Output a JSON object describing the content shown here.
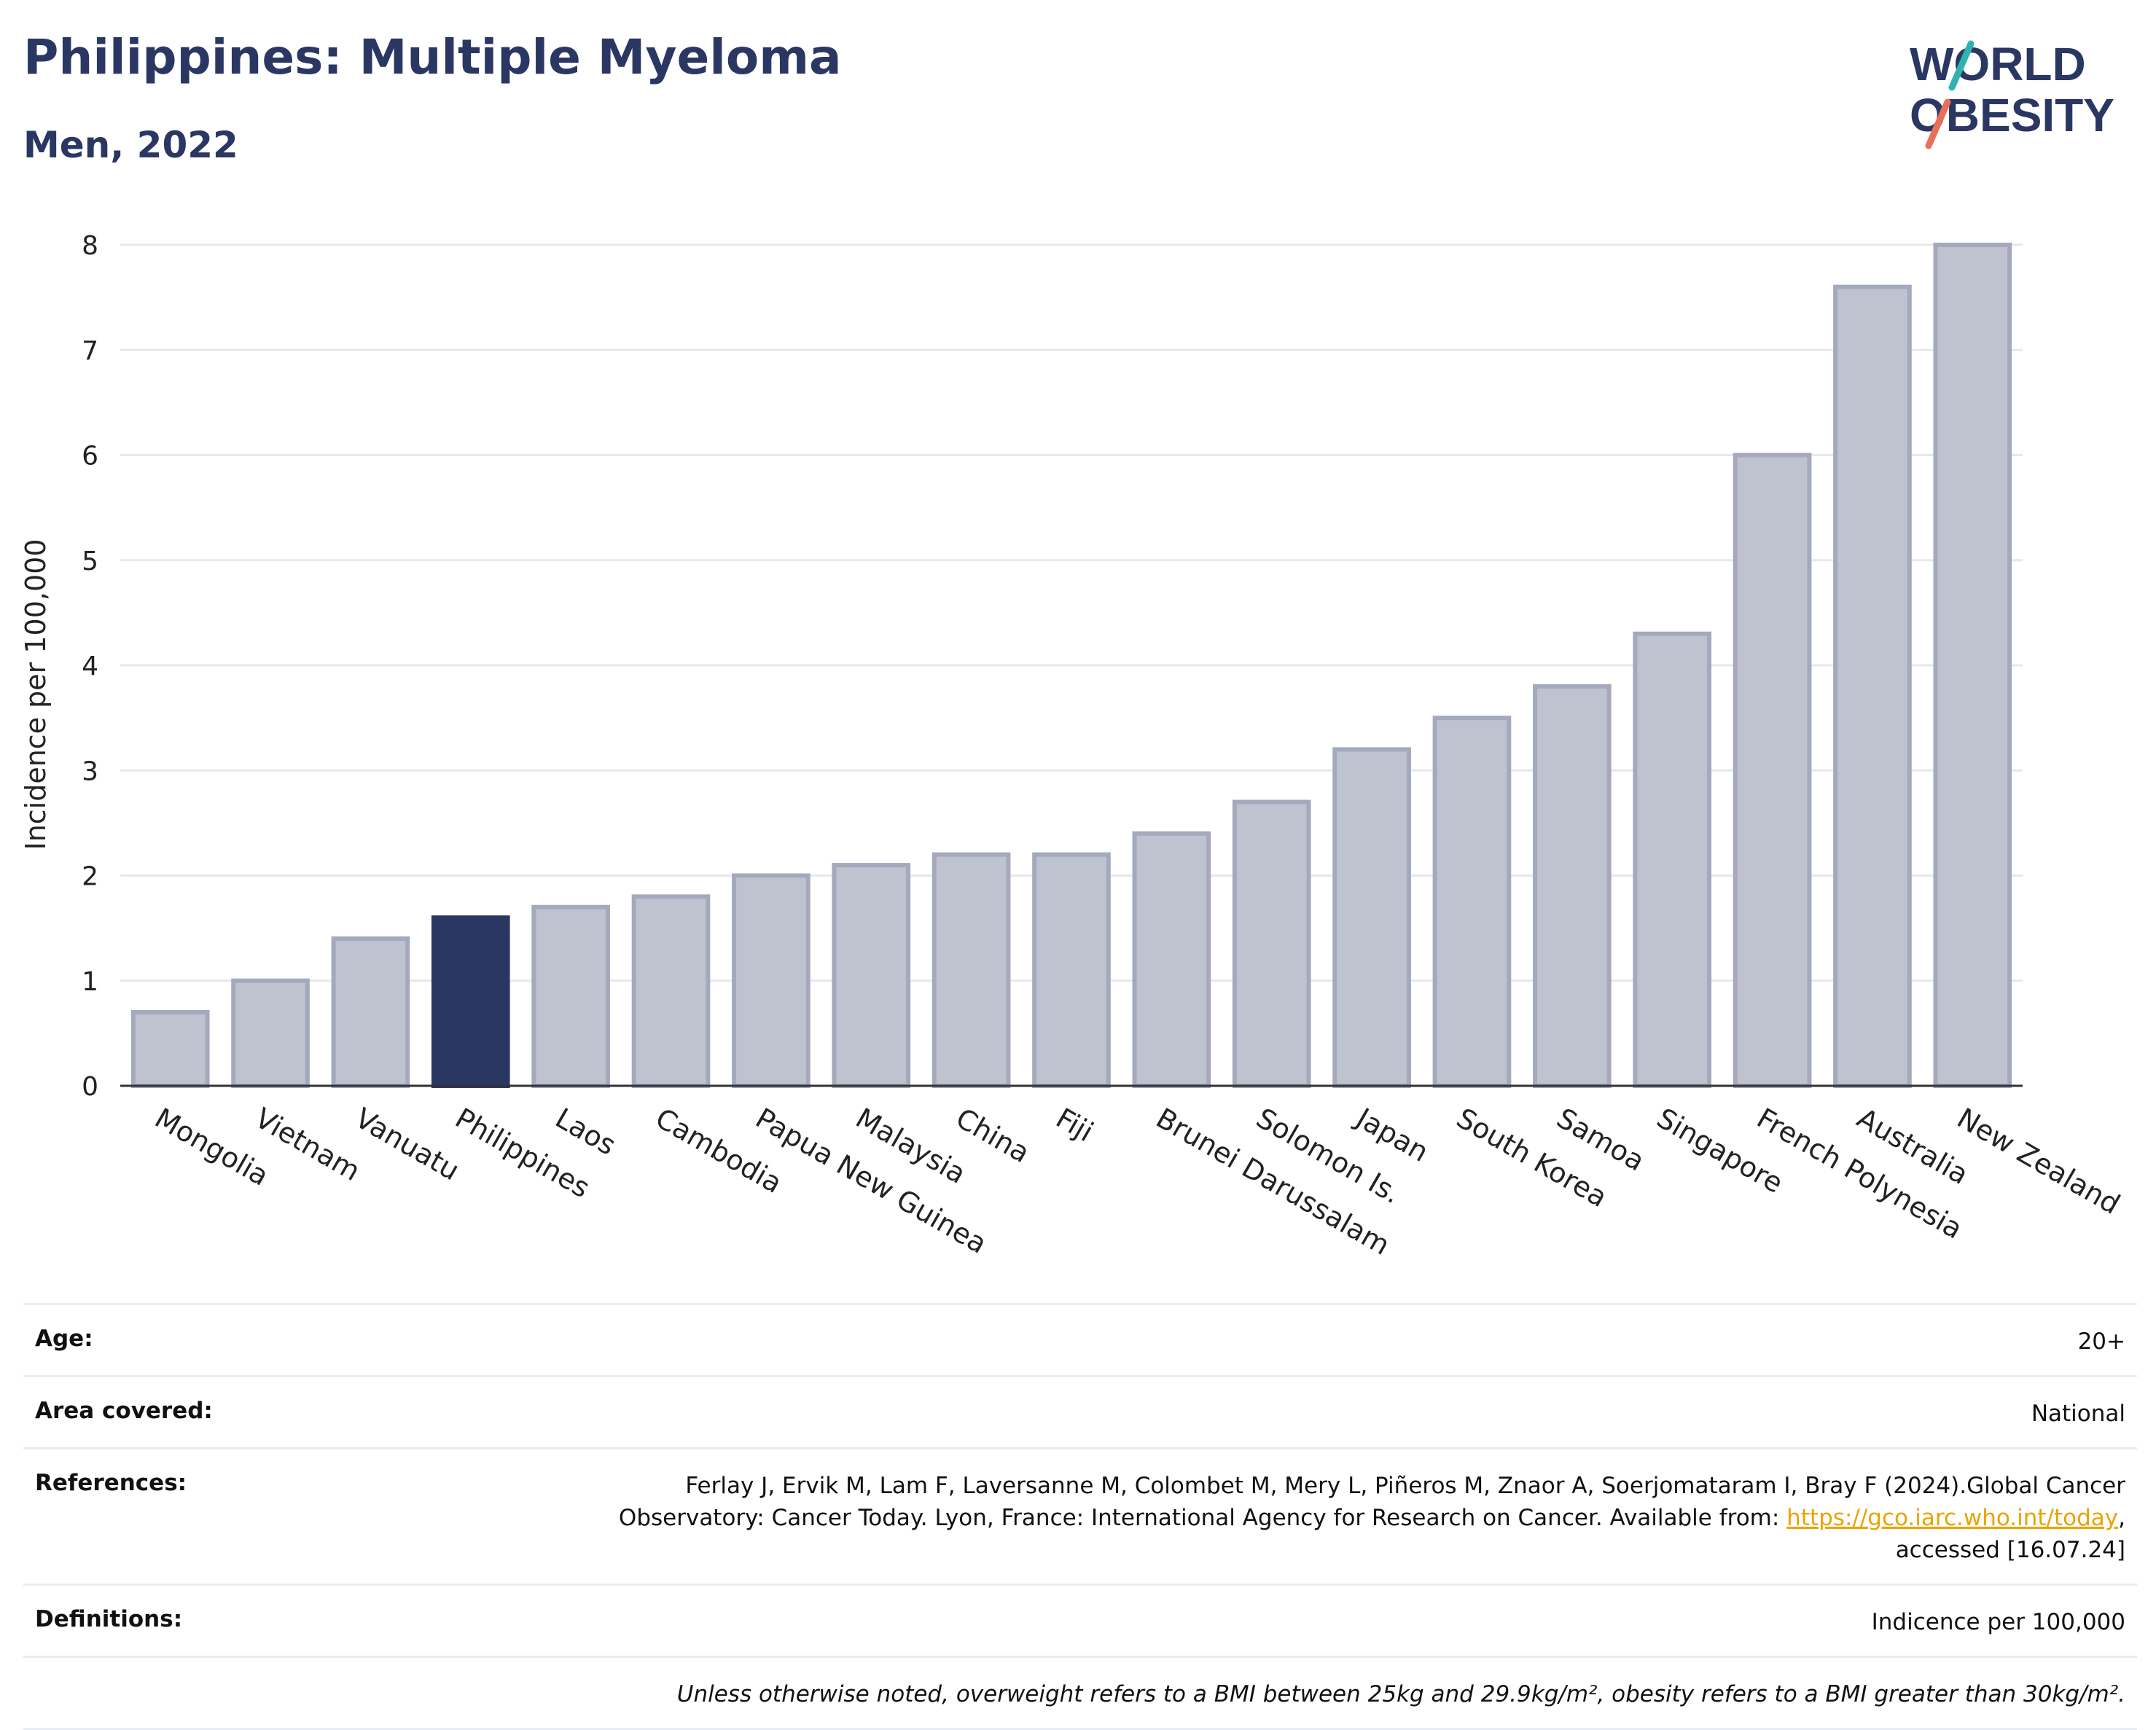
{
  "header": {
    "title": "Philippines: Multiple Myeloma",
    "subtitle": "Men, 2022"
  },
  "logo": {
    "line1": "WORLD",
    "line2": "OBESITY",
    "colors": {
      "text": "#2b3763",
      "slash_teal": "#2fb3b1",
      "slash_coral": "#e8705a"
    }
  },
  "chart_data": {
    "type": "bar",
    "title": "Philippines: Multiple Myeloma",
    "subtitle": "Men, 2022",
    "ylabel": "Incidence per 100,000",
    "xlabel": "",
    "ylim": [
      0,
      8
    ],
    "yticks": [
      0,
      1,
      2,
      3,
      4,
      5,
      6,
      7,
      8
    ],
    "grid": true,
    "categories": [
      "Mongolia",
      "Vietnam",
      "Vanuatu",
      "Philippines",
      "Laos",
      "Cambodia",
      "Papua New Guinea",
      "Malaysia",
      "China",
      "Fiji",
      "Brunei Darussalam",
      "Solomon Is.",
      "Japan",
      "South Korea",
      "Samoa",
      "Singapore",
      "French Polynesia",
      "Australia",
      "New Zealand"
    ],
    "values": [
      0.7,
      1.0,
      1.4,
      1.6,
      1.7,
      1.8,
      2.0,
      2.1,
      2.2,
      2.2,
      2.4,
      2.7,
      3.2,
      3.5,
      3.8,
      4.3,
      6.0,
      7.6,
      8.0
    ],
    "highlight": "Philippines",
    "colors": {
      "bar": "#bfc2cf",
      "bar_edge": "#a4a9bd",
      "highlight": "#2b3763",
      "grid": "#e6e8ee",
      "axis": "#333333"
    }
  },
  "info": {
    "age_label": "Age:",
    "age_value": "20+",
    "area_label": "Area covered:",
    "area_value": "National",
    "references_label": "References:",
    "references_line1": "Ferlay J, Ervik M, Lam F, Laversanne M, Colombet M, Mery L, Piñeros M, Znaor A, Soerjomataram I, Bray F (2024).Global Cancer",
    "references_line2": "Observatory: Cancer Today. Lyon, France: International Agency for Research on Cancer. Available from: ",
    "references_link": "https://gco.iarc.who.int/today",
    "references_line2_end": ",",
    "references_line3": "accessed [16.07.24]",
    "definitions_label": "Definitions:",
    "definitions_value": "Indicence per 100,000",
    "note": "Unless otherwise noted, overweight refers to a BMI between 25kg and 29.9kg/m², obesity refers to a BMI greater than 30kg/m²."
  }
}
